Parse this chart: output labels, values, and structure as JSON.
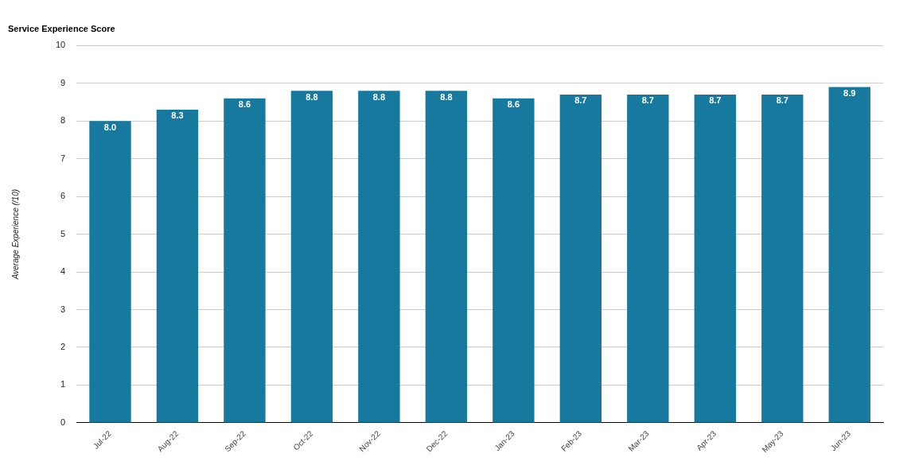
{
  "chart_data": {
    "type": "bar",
    "title": "Service Experience Score",
    "ylabel": "Average Experience (/10)",
    "categories": [
      "Jul-22",
      "Aug-22",
      "Sep-22",
      "Oct-22",
      "Nov-22",
      "Dec-22",
      "Jan-23",
      "Feb-23",
      "Mar-23",
      "Apr-23",
      "May-23",
      "Jun-23"
    ],
    "values": [
      8.0,
      8.3,
      8.6,
      8.8,
      8.8,
      8.8,
      8.6,
      8.7,
      8.7,
      8.7,
      8.7,
      8.9
    ],
    "value_labels": [
      "8.0",
      "8.3",
      "8.6",
      "8.8",
      "8.8",
      "8.8",
      "8.6",
      "8.7",
      "8.7",
      "8.7",
      "8.7",
      "8.9"
    ],
    "color": "#17799e",
    "ylim": [
      0,
      10
    ],
    "yticks": [
      0,
      1,
      2,
      3,
      4,
      5,
      6,
      7,
      8,
      9,
      10
    ],
    "grid": "y",
    "legend": false
  }
}
